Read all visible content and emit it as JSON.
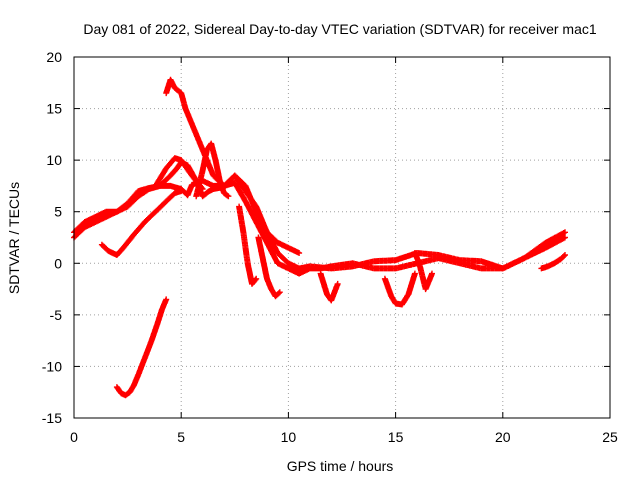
{
  "chart_data": {
    "type": "scatter",
    "title": "Day 081 of 2022, Sidereal Day-to-day VTEC variation (SDTVAR) for receiver mac1",
    "xlabel": "GPS time / hours",
    "ylabel": "SDTVAR / TECUs",
    "xlim": [
      0,
      25
    ],
    "ylim": [
      -15,
      20
    ],
    "xticks": [
      0,
      5,
      10,
      15,
      20,
      25
    ],
    "yticks": [
      -15,
      -10,
      -5,
      0,
      5,
      10,
      15,
      20
    ],
    "grid": true,
    "marker": "+",
    "color": "#ff0000",
    "series": [
      {
        "name": "main-lower",
        "x": [
          0,
          0.5,
          1,
          1.5,
          2,
          2.5,
          3,
          3.5,
          4,
          4.5,
          5,
          5.3,
          5.5,
          6,
          6.5,
          7,
          7.5,
          8,
          8.5,
          9,
          9.5,
          10,
          10.5,
          11,
          11.5,
          12,
          13,
          14,
          15,
          16,
          17,
          18,
          19,
          20,
          21,
          22,
          22.9
        ],
        "y": [
          2.5,
          3.5,
          4,
          4.5,
          5,
          5.8,
          7,
          7.3,
          7.5,
          7.5,
          7.2,
          6.6,
          7.6,
          8,
          7.5,
          7.5,
          7.8,
          6,
          4,
          2,
          0,
          -0.5,
          -1,
          -0.5,
          -0.5,
          -0.3,
          0,
          -0.5,
          -0.5,
          0,
          0.5,
          0,
          -0.5,
          -0.5,
          0.5,
          1.5,
          2.5
        ]
      },
      {
        "name": "main-upper",
        "x": [
          0,
          0.5,
          1,
          1.5,
          2,
          2.5,
          3,
          3.5,
          4,
          4.5,
          4.8,
          5,
          5.3,
          5.7,
          6,
          6.3,
          6.5,
          7,
          7.5,
          8,
          8.5,
          9,
          9.5,
          10,
          10.5,
          11,
          12,
          13,
          14,
          15,
          16,
          17,
          18,
          19,
          20,
          21,
          22,
          22.9
        ],
        "y": [
          3,
          4,
          4.5,
          5,
          5,
          5.5,
          6.5,
          7.2,
          7.5,
          8.5,
          9.2,
          9.8,
          9.5,
          8,
          6.5,
          7,
          7.2,
          7.4,
          8.5,
          7.5,
          5,
          3,
          1,
          0,
          -0.5,
          -0.3,
          -0.5,
          -0.3,
          0.2,
          0.3,
          1,
          0.8,
          0.3,
          0.2,
          -0.5,
          0.5,
          2,
          3
        ]
      },
      {
        "name": "lower-branch",
        "x": [
          1.3,
          1.6,
          2,
          2.3,
          2.8,
          3.3,
          3.8,
          4.3,
          4.7,
          5
        ],
        "y": [
          1.8,
          1.2,
          0.8,
          1.5,
          2.8,
          4,
          5,
          6,
          6.8,
          7
        ]
      },
      {
        "name": "peak-spike",
        "x": [
          4.3,
          4.5,
          4.7,
          5,
          5.2,
          5.5,
          6,
          6.5,
          7,
          7.5,
          8,
          8.5,
          9,
          9.5,
          10,
          10.5
        ],
        "y": [
          16.5,
          17.8,
          17,
          16.5,
          15,
          13.5,
          11,
          8.5,
          7.5,
          8.5,
          7,
          5.5,
          3,
          2,
          1.5,
          1
        ]
      },
      {
        "name": "second-peak",
        "x": [
          5.7,
          6,
          6.2,
          6.4,
          6.6,
          6.8,
          7,
          7.2
        ],
        "y": [
          6.5,
          9,
          11,
          11.6,
          10,
          8,
          6.8,
          6.5
        ]
      },
      {
        "name": "mid-hump",
        "x": [
          3.8,
          4.3,
          4.7,
          5,
          5.5,
          6
        ],
        "y": [
          7.5,
          9.2,
          10.2,
          10,
          8.5,
          7.2
        ]
      },
      {
        "name": "dip-8h",
        "x": [
          7.7,
          7.9,
          8.1,
          8.3,
          8.5
        ],
        "y": [
          5.5,
          3,
          0,
          -2,
          -1.5
        ]
      },
      {
        "name": "dip-9h",
        "x": [
          8.6,
          8.8,
          9.0,
          9.2,
          9.4,
          9.6
        ],
        "y": [
          2.5,
          0.5,
          -1.5,
          -2.5,
          -3.2,
          -2.8
        ]
      },
      {
        "name": "dip-12h",
        "x": [
          11.5,
          11.8,
          12.0,
          12.3
        ],
        "y": [
          -1,
          -3,
          -3.6,
          -2
        ]
      },
      {
        "name": "dip-15h",
        "x": [
          14.5,
          14.8,
          15.0,
          15.3,
          15.6,
          15.9
        ],
        "y": [
          -1.5,
          -3.2,
          -3.9,
          -4,
          -3,
          -1
        ]
      },
      {
        "name": "dip-16h",
        "x": [
          15.9,
          16.1,
          16.4,
          16.7
        ],
        "y": [
          1,
          0,
          -2.5,
          -1
        ]
      },
      {
        "name": "low-curve",
        "x": [
          2,
          2.2,
          2.4,
          2.6,
          2.8,
          3.0,
          3.3,
          3.6,
          3.9,
          4.1,
          4.3
        ],
        "y": [
          -12,
          -12.6,
          -12.8,
          -12.5,
          -11.8,
          -10.8,
          -9.2,
          -7.6,
          -5.8,
          -4.5,
          -3.5
        ]
      },
      {
        "name": "tail",
        "x": [
          21.8,
          22.1,
          22.4,
          22.7,
          22.9
        ],
        "y": [
          -0.5,
          -0.3,
          0,
          0.4,
          0.8
        ]
      }
    ]
  }
}
